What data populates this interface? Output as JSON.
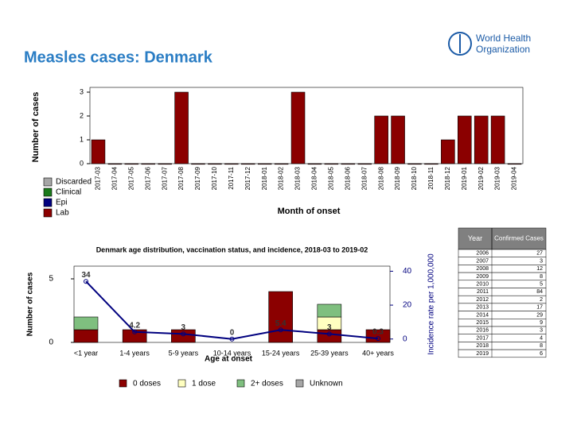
{
  "header": {
    "title": "Measles cases: Denmark"
  },
  "logo": {
    "lines": [
      "World Health",
      "Organization"
    ]
  },
  "chart_data": [
    {
      "type": "bar",
      "ylabel": "Number of cases",
      "xlabel": "Month of onset",
      "categories": [
        "2017-03",
        "2017-04",
        "2017-05",
        "2017-06",
        "2017-07",
        "2017-08",
        "2017-09",
        "2017-10",
        "2017-11",
        "2017-12",
        "2018-01",
        "2018-02",
        "2018-03",
        "2018-04",
        "2018-05",
        "2018-06",
        "2018-07",
        "2018-08",
        "2018-09",
        "2018-10",
        "2018-11",
        "2018-12",
        "2019-01",
        "2019-02",
        "2019-03",
        "2019-04"
      ],
      "values": [
        1,
        0,
        0,
        0,
        0,
        3,
        0,
        0,
        0,
        0,
        0,
        0,
        3,
        0,
        0,
        0,
        0,
        2,
        2,
        0,
        0,
        1,
        2,
        2,
        2,
        0
      ],
      "color": "#8b0000",
      "legend": [
        {
          "name": "Discarded",
          "color": "#a6a6a6"
        },
        {
          "name": "Clinical",
          "color": "#1a7a1a"
        },
        {
          "name": "Epi",
          "color": "#00007f"
        },
        {
          "name": "Lab",
          "color": "#8b0000"
        }
      ],
      "ylim": [
        0,
        3
      ],
      "yticks": [
        0,
        1,
        2,
        3
      ]
    },
    {
      "type": "stacked-bar-line",
      "title": "Denmark age distribution, vaccination status, and incidence, 2018-03 to 2019-02",
      "ylabel": "Number of cases",
      "xlabel": "Age at onset",
      "y2label": "Incidence rate per 1,000,000",
      "categories": [
        "<1 year",
        "1-4 years",
        "5-9 years",
        "10-14 years",
        "15-24 years",
        "25-39 years",
        "40+ years"
      ],
      "series": [
        {
          "name": "0 doses",
          "color": "#8b0000",
          "values": [
            1,
            1,
            1,
            0,
            4,
            1,
            1
          ]
        },
        {
          "name": "1 dose",
          "color": "#ffffc0",
          "values": [
            0,
            0,
            0,
            0,
            0,
            1,
            0
          ]
        },
        {
          "name": "2+ doses",
          "color": "#7fbf7f",
          "values": [
            1,
            0,
            0,
            0,
            0,
            1,
            0
          ]
        },
        {
          "name": "Unknown",
          "color": "#a6a6a6",
          "values": [
            0,
            0,
            0,
            0,
            0,
            0,
            0
          ]
        },
        {
          "type": "line",
          "axis": "y2",
          "color": "#00007f",
          "values": [
            34,
            4.2,
            3,
            0,
            5.4,
            3,
            0.3
          ]
        }
      ],
      "ylim": [
        0,
        6
      ],
      "yticks": [
        0,
        5
      ],
      "y2lim": [
        -2,
        43
      ],
      "y2ticks": [
        0,
        20,
        40
      ]
    }
  ],
  "table": {
    "header": [
      "Year",
      "Confirmed Cases"
    ],
    "rows": [
      [
        2006,
        27
      ],
      [
        2007,
        3
      ],
      [
        2008,
        12
      ],
      [
        2009,
        8
      ],
      [
        2010,
        5
      ],
      [
        2011,
        84
      ],
      [
        2012,
        2
      ],
      [
        2013,
        17
      ],
      [
        2014,
        29
      ],
      [
        2015,
        9
      ],
      [
        2016,
        3
      ],
      [
        2017,
        4
      ],
      [
        2018,
        8
      ],
      [
        2019,
        6
      ]
    ]
  }
}
